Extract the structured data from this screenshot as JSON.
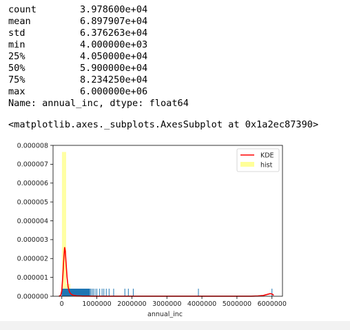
{
  "output": {
    "stats": [
      {
        "name": "count",
        "value": "3.978600e+04"
      },
      {
        "name": "mean",
        "value": "6.897907e+04"
      },
      {
        "name": "std",
        "value": "6.376263e+04"
      },
      {
        "name": "min",
        "value": "4.000000e+03"
      },
      {
        "name": "25%",
        "value": "4.050000e+04"
      },
      {
        "name": "50%",
        "value": "5.900000e+04"
      },
      {
        "name": "75%",
        "value": "8.234250e+04"
      },
      {
        "name": "max",
        "value": "6.000000e+06"
      }
    ],
    "dtype_line": "Name: annual_inc, dtype: float64",
    "axes_repr": "<matplotlib.axes._subplots.AxesSubplot at 0x1a2ec87390>"
  },
  "colors": {
    "kde": "#ff0000",
    "hist": "#ffff99",
    "rug": "#1f77b4"
  },
  "chart_data": {
    "type": "bar",
    "xlabel": "annual_inc",
    "xlim": [
      -250000,
      6300000
    ],
    "ylim": [
      0,
      8e-06
    ],
    "x_ticks": [
      0,
      1000000,
      2000000,
      3000000,
      4000000,
      5000000,
      6000000
    ],
    "x_tick_labels": [
      "0",
      "1000000",
      "2000000",
      "3000000",
      "4000000",
      "5000000",
      "6000000"
    ],
    "y_ticks": [
      0,
      1e-06,
      2e-06,
      3e-06,
      4e-06,
      5e-06,
      6e-06,
      7e-06,
      8e-06
    ],
    "y_tick_labels": [
      "0.000000",
      "0.000001",
      "0.000002",
      "0.000003",
      "0.000004",
      "0.000005",
      "0.000006",
      "0.000007",
      "0.000008"
    ],
    "legend": {
      "position": "top-right",
      "entries": [
        "KDE",
        "hist"
      ]
    },
    "hist": {
      "name": "hist",
      "bins": [
        {
          "x0": 4000,
          "x1": 124000,
          "density": 7.65e-06
        },
        {
          "x0": 124000,
          "x1": 244000,
          "density": 6.5e-07
        },
        {
          "x0": 244000,
          "x1": 364000,
          "density": 1.2e-07
        },
        {
          "x0": 364000,
          "x1": 484000,
          "density": 4e-08
        }
      ]
    },
    "kde": {
      "name": "KDE",
      "x": [
        -80000,
        -30000,
        0,
        30000,
        60000,
        80000,
        100000,
        120000,
        150000,
        180000,
        220000,
        270000,
        330000,
        420000,
        600000,
        1000000,
        2000000,
        3000000,
        4000000,
        5000000,
        5400000,
        5600000,
        5750000,
        5850000,
        5950000,
        6000000,
        6050000
      ],
      "y": [
        0,
        5e-08,
        3e-07,
        1.1e-06,
        2.1e-06,
        2.6e-06,
        2.4e-06,
        1.8e-06,
        1e-06,
        5e-07,
        2.2e-07,
        1e-07,
        5e-08,
        2e-08,
        8e-09,
        3e-09,
        2e-09,
        2e-09,
        2e-09,
        2e-09,
        4e-09,
        1.5e-08,
        4e-08,
        9e-08,
        1.4e-07,
        1.2e-07,
        5e-08
      ]
    },
    "rug": {
      "dense_range": [
        4000,
        800000
      ],
      "points": [
        820000,
        860000,
        900000,
        950000,
        1000000,
        1080000,
        1150000,
        1200000,
        1270000,
        1350000,
        1480000,
        1800000,
        1900000,
        2040000,
        3900000,
        6000000
      ]
    }
  }
}
